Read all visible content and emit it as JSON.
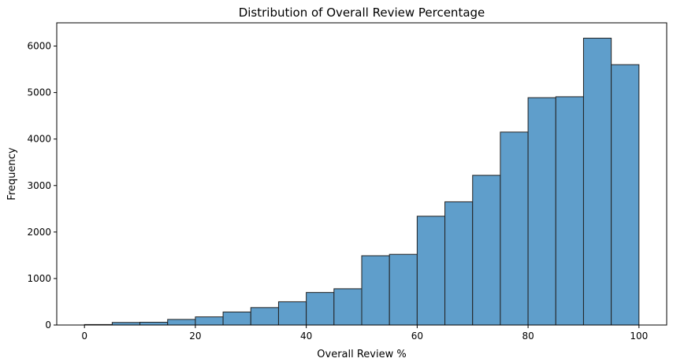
{
  "chart_data": {
    "type": "bar",
    "title": "Distribution of Overall Review Percentage",
    "xlabel": "Overall Review %",
    "ylabel": "Frequency",
    "bin_edges": [
      0,
      5,
      10,
      15,
      20,
      25,
      30,
      35,
      40,
      45,
      50,
      55,
      60,
      65,
      70,
      75,
      80,
      85,
      90,
      95,
      100
    ],
    "values": [
      10,
      55,
      60,
      120,
      175,
      280,
      375,
      500,
      700,
      780,
      1490,
      1520,
      2340,
      2650,
      3220,
      4150,
      4890,
      4910,
      6170,
      5600
    ],
    "xlim": [
      -5,
      105
    ],
    "ylim": [
      0,
      6500
    ],
    "x_ticks": [
      0,
      20,
      40,
      60,
      80,
      100
    ],
    "y_ticks": [
      0,
      1000,
      2000,
      3000,
      4000,
      5000,
      6000
    ],
    "bar_color": "#5f9ecb",
    "edge_color": "#222222",
    "grid": false
  }
}
